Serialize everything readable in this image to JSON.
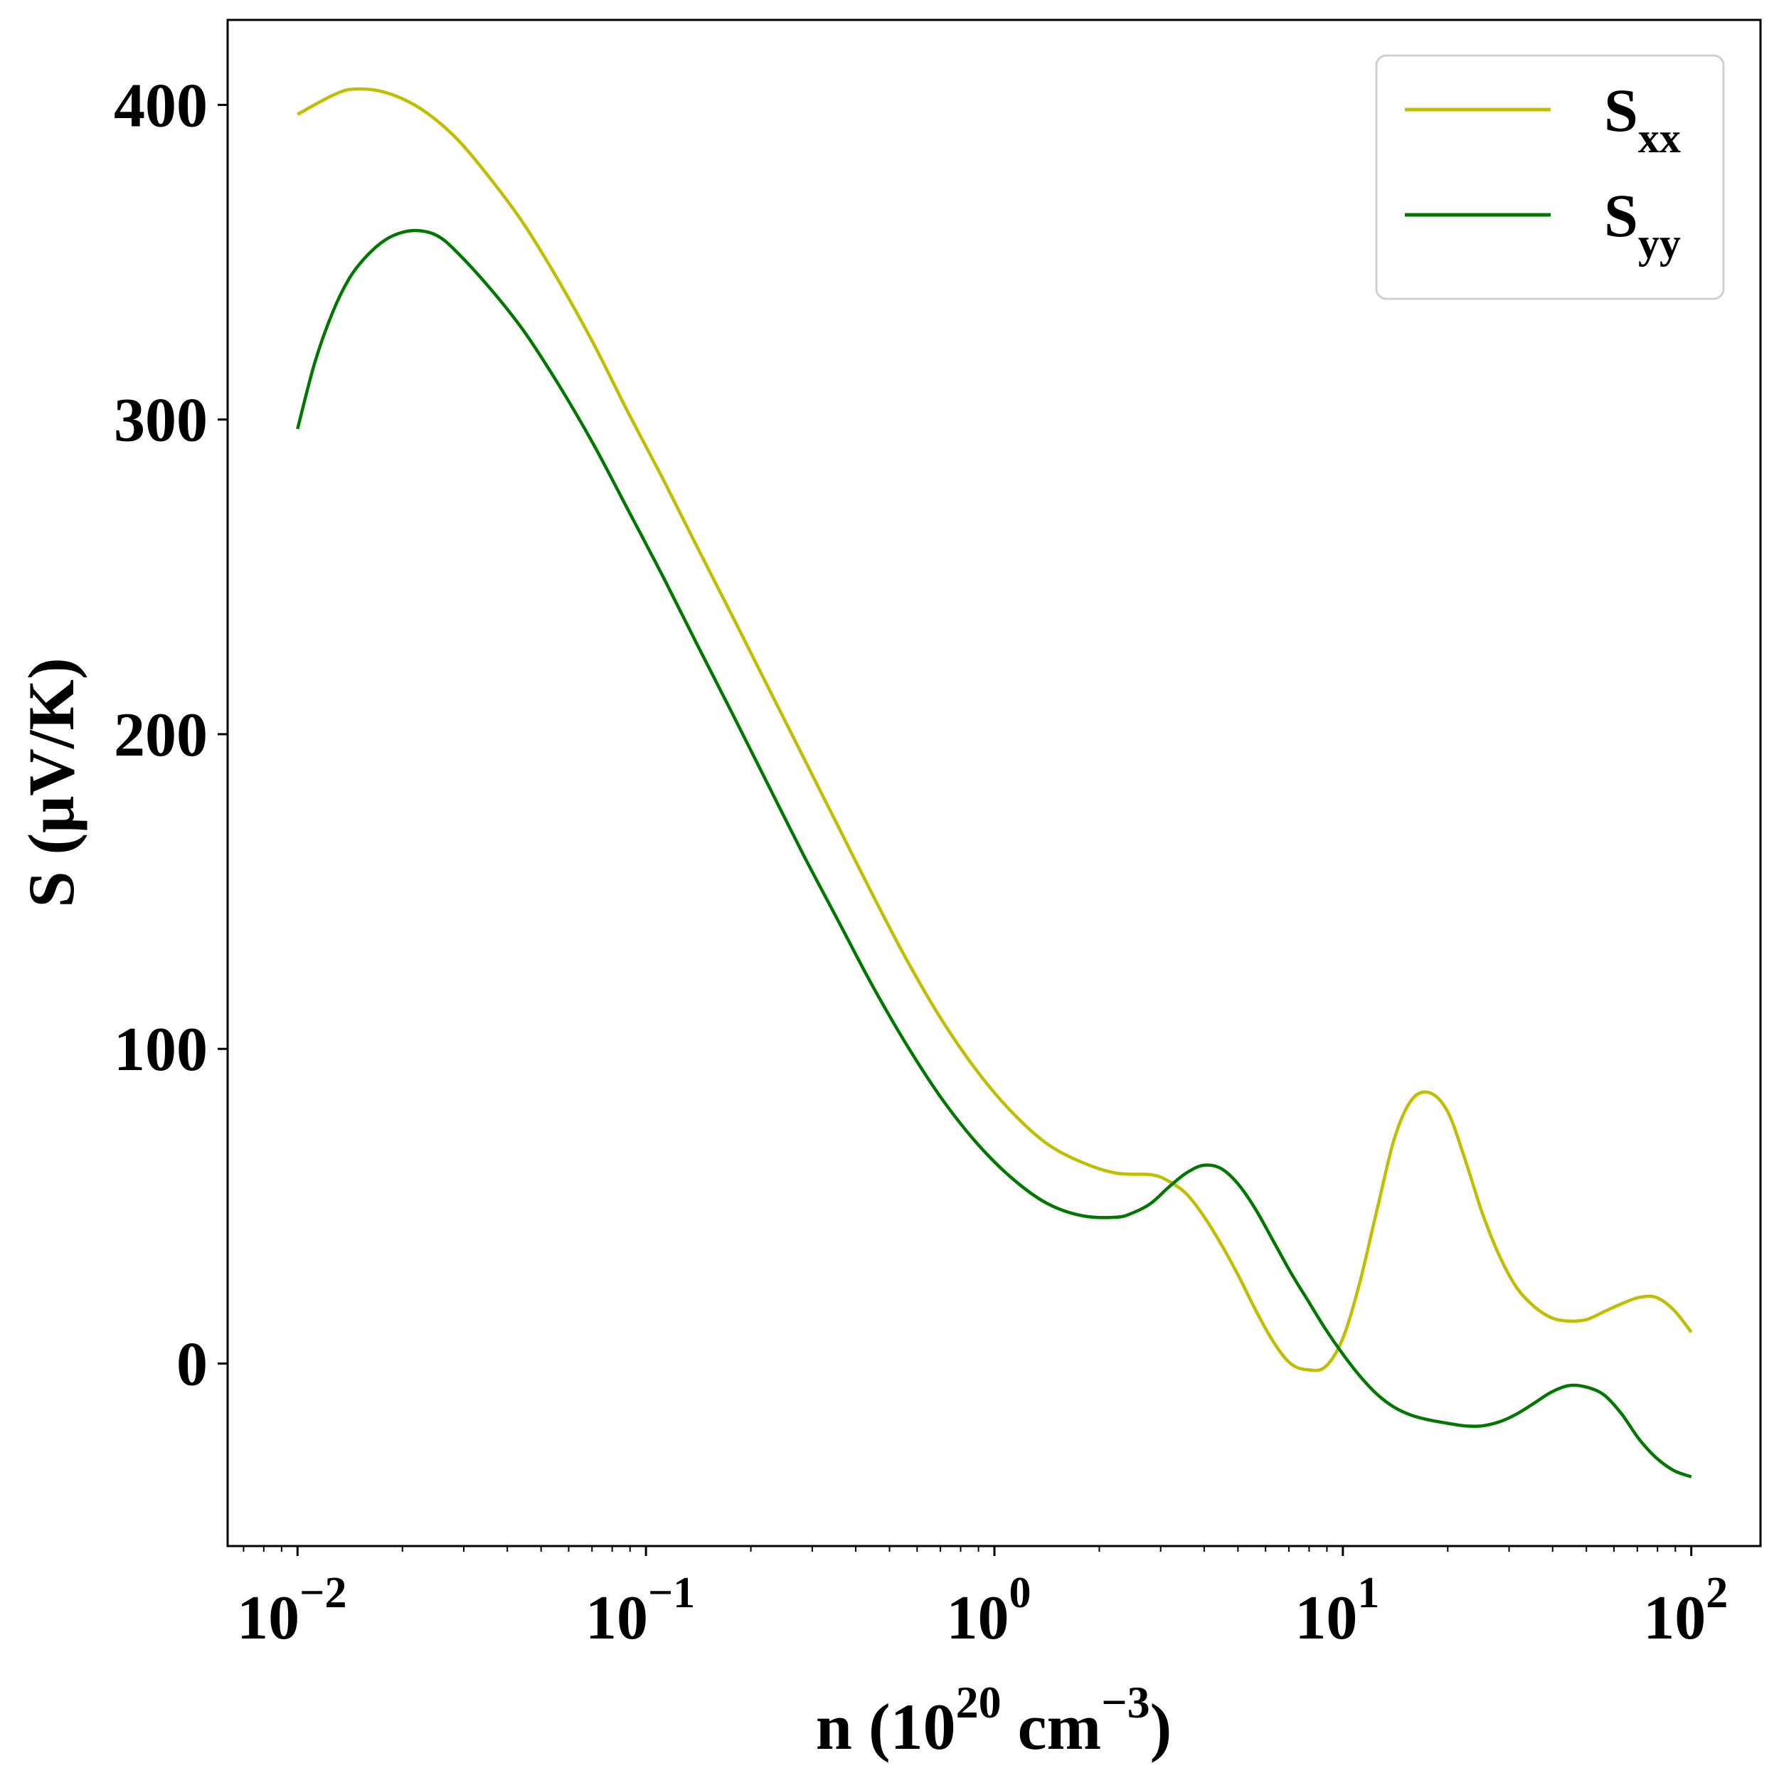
{
  "chart_data": {
    "type": "line",
    "title": "",
    "xlabel": {
      "base": "n (10",
      "sup1": "20",
      "mid": " cm",
      "sup2": "−3",
      "end": ")"
    },
    "ylabel": "S (μV/K)",
    "xscale": "log",
    "xlim": [
      0.0063,
      158
    ],
    "ylim": [
      -58,
      427
    ],
    "x_ticks": [
      {
        "value": 0.01,
        "base": "10",
        "exp": "−2"
      },
      {
        "value": 0.1,
        "base": "10",
        "exp": "−1"
      },
      {
        "value": 1,
        "base": "10",
        "exp": "0"
      },
      {
        "value": 10,
        "base": "10",
        "exp": "1"
      },
      {
        "value": 100,
        "base": "10",
        "exp": "2"
      }
    ],
    "y_ticks": [
      0,
      100,
      200,
      300,
      400
    ],
    "grid": false,
    "legend_position": "top-right",
    "series": [
      {
        "name": "S",
        "subscript": "xx",
        "color": "#bfbf00",
        "points": [
          [
            0.01,
            397
          ],
          [
            0.0126,
            403
          ],
          [
            0.0145,
            405
          ],
          [
            0.0178,
            404
          ],
          [
            0.0224,
            399
          ],
          [
            0.0282,
            390
          ],
          [
            0.0355,
            377
          ],
          [
            0.0447,
            362
          ],
          [
            0.0562,
            344
          ],
          [
            0.0708,
            324
          ],
          [
            0.0891,
            302
          ],
          [
            0.112,
            281
          ],
          [
            0.141,
            259
          ],
          [
            0.178,
            237
          ],
          [
            0.224,
            215
          ],
          [
            0.282,
            193
          ],
          [
            0.355,
            171
          ],
          [
            0.447,
            149
          ],
          [
            0.562,
            128
          ],
          [
            0.708,
            109
          ],
          [
            0.891,
            93
          ],
          [
            1.12,
            80
          ],
          [
            1.41,
            70
          ],
          [
            1.78,
            64
          ],
          [
            2.24,
            60.5
          ],
          [
            2.82,
            60
          ],
          [
            3.16,
            58
          ],
          [
            3.55,
            54
          ],
          [
            3.98,
            47
          ],
          [
            4.47,
            38
          ],
          [
            5.01,
            28
          ],
          [
            5.62,
            17
          ],
          [
            6.31,
            7
          ],
          [
            7.08,
            0
          ],
          [
            7.94,
            -2
          ],
          [
            8.91,
            -1
          ],
          [
            10.0,
            8
          ],
          [
            11.2,
            26
          ],
          [
            12.6,
            50
          ],
          [
            14.1,
            72
          ],
          [
            15.8,
            84
          ],
          [
            17.8,
            86
          ],
          [
            20.0,
            80
          ],
          [
            22.4,
            65
          ],
          [
            25.1,
            48
          ],
          [
            28.2,
            34
          ],
          [
            31.6,
            24
          ],
          [
            35.5,
            18
          ],
          [
            39.8,
            14.5
          ],
          [
            44.7,
            13.5
          ],
          [
            50.1,
            14
          ],
          [
            56.2,
            16.5
          ],
          [
            63.1,
            19
          ],
          [
            70.8,
            21
          ],
          [
            79.4,
            21
          ],
          [
            89.1,
            17
          ],
          [
            100,
            10
          ]
        ]
      },
      {
        "name": "S",
        "subscript": "yy",
        "color": "#007800",
        "points": [
          [
            0.01,
            297
          ],
          [
            0.0112,
            318
          ],
          [
            0.0126,
            334
          ],
          [
            0.0141,
            345
          ],
          [
            0.0158,
            352
          ],
          [
            0.0178,
            357
          ],
          [
            0.02,
            359.5
          ],
          [
            0.0224,
            360
          ],
          [
            0.0251,
            358.5
          ],
          [
            0.0282,
            354
          ],
          [
            0.0355,
            342
          ],
          [
            0.0447,
            328
          ],
          [
            0.0562,
            311
          ],
          [
            0.0708,
            292
          ],
          [
            0.0891,
            271
          ],
          [
            0.112,
            250
          ],
          [
            0.141,
            228
          ],
          [
            0.178,
            206
          ],
          [
            0.224,
            184
          ],
          [
            0.282,
            162
          ],
          [
            0.355,
            141
          ],
          [
            0.447,
            120
          ],
          [
            0.562,
            101
          ],
          [
            0.708,
            84
          ],
          [
            0.891,
            70
          ],
          [
            1.12,
            59
          ],
          [
            1.41,
            51
          ],
          [
            1.78,
            47
          ],
          [
            2.24,
            46.5
          ],
          [
            2.51,
            48
          ],
          [
            2.82,
            51
          ],
          [
            3.16,
            56
          ],
          [
            3.55,
            60.5
          ],
          [
            3.98,
            63
          ],
          [
            4.47,
            62
          ],
          [
            5.01,
            57
          ],
          [
            5.62,
            49
          ],
          [
            6.31,
            39
          ],
          [
            7.08,
            29
          ],
          [
            7.94,
            20
          ],
          [
            8.91,
            11
          ],
          [
            10.0,
            3
          ],
          [
            11.2,
            -4
          ],
          [
            12.6,
            -10
          ],
          [
            14.1,
            -14
          ],
          [
            15.8,
            -16.5
          ],
          [
            17.8,
            -18
          ],
          [
            20.0,
            -19
          ],
          [
            22.4,
            -19.8
          ],
          [
            25.1,
            -19.8
          ],
          [
            28.2,
            -18.5
          ],
          [
            31.6,
            -16
          ],
          [
            35.5,
            -12.5
          ],
          [
            39.8,
            -9
          ],
          [
            44.7,
            -7
          ],
          [
            50.1,
            -7.5
          ],
          [
            56.2,
            -10
          ],
          [
            63.1,
            -16
          ],
          [
            70.8,
            -24
          ],
          [
            79.4,
            -30
          ],
          [
            89.1,
            -34
          ],
          [
            100,
            -36
          ]
        ]
      }
    ]
  }
}
